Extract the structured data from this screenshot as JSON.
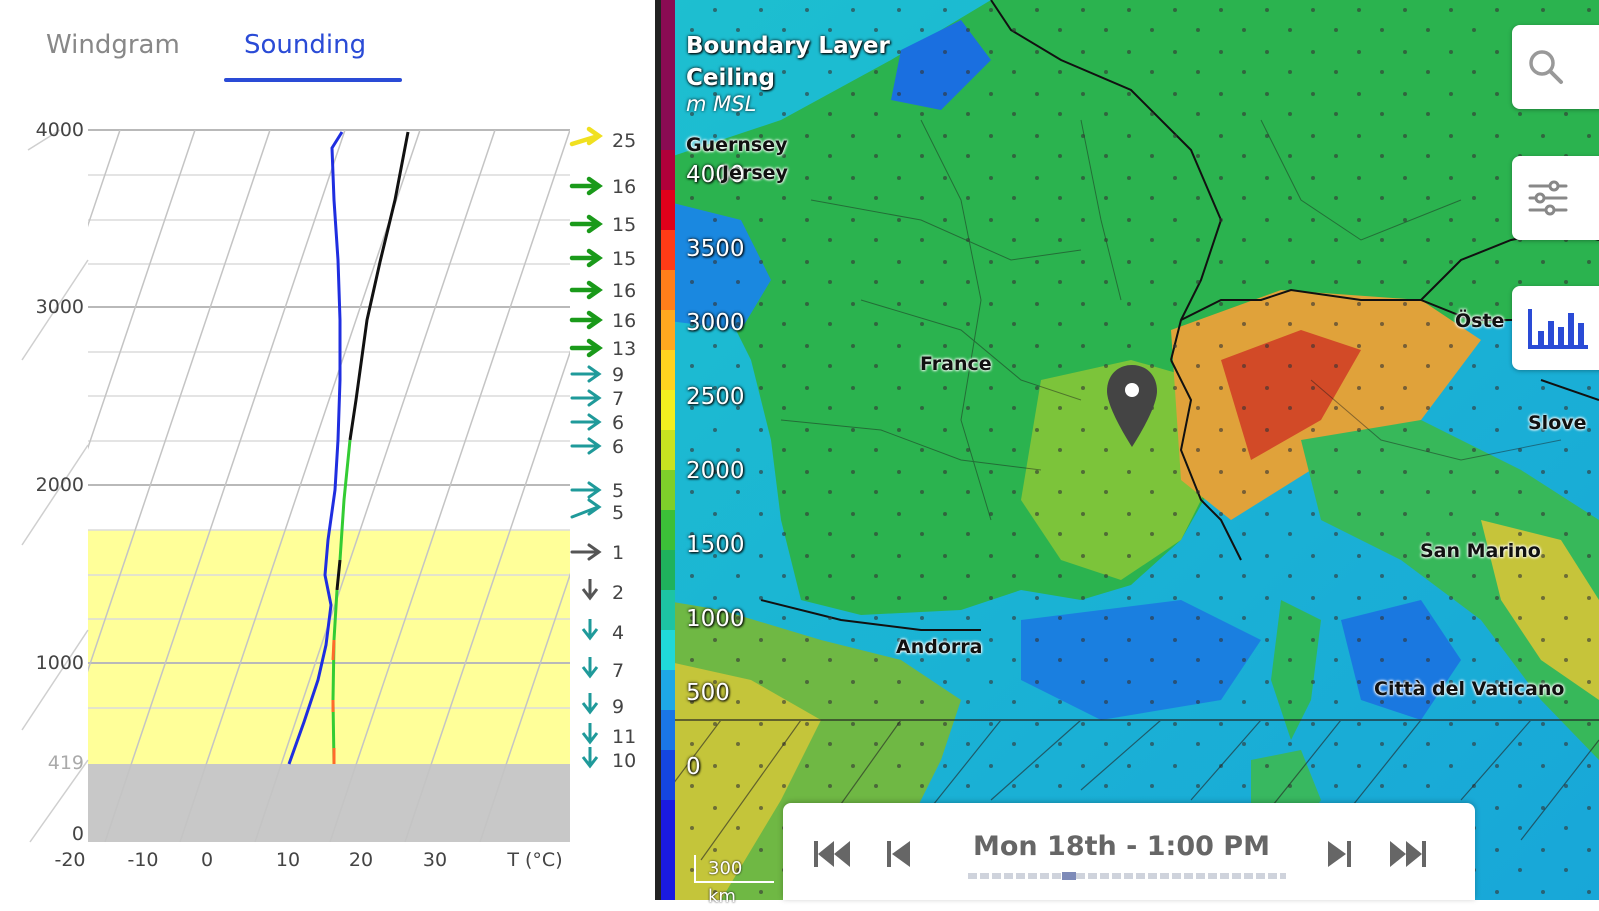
{
  "tabs": {
    "windgram": "Windgram",
    "sounding": "Sounding"
  },
  "sounding": {
    "y_ticks": [
      "4000",
      "3000",
      "2000",
      "1000",
      "419",
      "0"
    ],
    "x_ticks": [
      "-20",
      "-10",
      "0",
      "10",
      "20",
      "30",
      "T (°C)"
    ],
    "wind_speeds": [
      "25",
      "16",
      "15",
      "15",
      "16",
      "16",
      "13",
      "9",
      "7",
      "6",
      "6",
      "5",
      "5",
      "1",
      "2",
      "4",
      "7",
      "9",
      "11",
      "10"
    ],
    "colors": {
      "boundary_layer": "#ffff99",
      "ground": "#c8c8c8",
      "dewpoint": "#1f2ee0",
      "temperature": "#000000",
      "cloud_segment": "#33cc33"
    }
  },
  "map": {
    "layer_title_line1": "Boundary Layer",
    "layer_title_line2": "Ceiling",
    "layer_unit": "m MSL",
    "colorbar_labels": [
      "4000",
      "3500",
      "3000",
      "2500",
      "2000",
      "1500",
      "1000",
      "500",
      "0"
    ],
    "places": {
      "guernsey": "Guernsey",
      "jersey": "Jersey",
      "france": "France",
      "andorra": "Andorra",
      "san_marino": "San Marino",
      "vatican": "Città del Vaticano",
      "osterreich": "Öste",
      "slovenia": "Slove"
    },
    "scale": "300 km",
    "buttons": {
      "search": "search-icon",
      "settings": "sliders-icon",
      "chart": "bar-chart-icon"
    }
  },
  "time": {
    "label": "Mon 18th - 1:00 PM",
    "accent": "#7d8ab8"
  }
}
